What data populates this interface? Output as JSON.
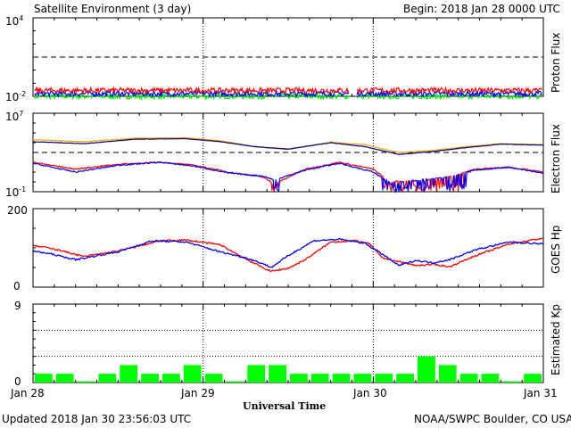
{
  "header": {
    "title": "Satellite Environment (3 day)",
    "begin": "Begin:  2018 Jan 28 0000 UTC"
  },
  "footer": {
    "updated": "Updated 2018 Jan 30 23:56:03 UTC",
    "credit": "NOAA/SWPC Boulder, CO USA"
  },
  "x_axis": {
    "label": "Universal Time",
    "ticks": [
      "Jan 28",
      "Jan 29",
      "Jan 30",
      "Jan 31"
    ]
  },
  "panels": {
    "proton": {
      "ylabel": "Proton Flux",
      "ytick_top_base": "10",
      "ytick_top_exp": "4",
      "ytick_bottom_base": "10",
      "ytick_bottom_exp": "-2"
    },
    "electron": {
      "ylabel": "Electron Flux",
      "ytick_top_base": "10",
      "ytick_top_exp": "7",
      "ytick_bottom_base": "10",
      "ytick_bottom_exp": "-1"
    },
    "goes": {
      "ylabel": "GOES Hp",
      "ytick_top": "200",
      "ytick_bottom": "0"
    },
    "kp": {
      "ylabel": "Estimated Kp",
      "ytick_top": "9",
      "ytick_bottom": "0"
    }
  },
  "colors": {
    "red": "#ff0000",
    "blue": "#0000ff",
    "green": "#00ee00",
    "orange": "#ffa500",
    "navy": "#000080",
    "kp_bar": "#00ff00",
    "frame": "#000000"
  },
  "chart_data": [
    {
      "type": "line",
      "title": "Proton Flux",
      "yscale": "log",
      "ylim": [
        0.01,
        10000
      ],
      "xlim_days": [
        0,
        3
      ],
      "threshold": 10,
      "series": [
        {
          "color": "red",
          "log10_level": -1.55
        },
        {
          "color": "blue",
          "log10_level": -1.8
        },
        {
          "color": "green",
          "log10_level": -2.0
        }
      ],
      "gap_days": [
        1.86,
        1.9
      ]
    },
    {
      "type": "line",
      "title": "Electron Flux",
      "yscale": "log",
      "ylim": [
        0.1,
        10000000
      ],
      "xlim_days": [
        0,
        3
      ],
      "threshold": 1000,
      "series": [
        {
          "color": "orange",
          "x": [
            0,
            0.3,
            0.6,
            0.9,
            1.1,
            1.3,
            1.5,
            1.75,
            1.95,
            2.15,
            2.35,
            2.55,
            2.75,
            3.0
          ],
          "log10": [
            4.3,
            4.1,
            4.45,
            4.5,
            4.2,
            3.6,
            3.3,
            4.05,
            3.8,
            3.0,
            3.2,
            3.6,
            3.9,
            3.8
          ]
        },
        {
          "color": "navy",
          "x": [
            0,
            0.3,
            0.6,
            0.9,
            1.1,
            1.3,
            1.5,
            1.75,
            1.95,
            2.15,
            2.35,
            2.55,
            2.75,
            3.0
          ],
          "log10": [
            4.1,
            3.9,
            4.35,
            4.4,
            4.1,
            3.6,
            3.35,
            4.0,
            3.6,
            2.8,
            3.1,
            3.5,
            3.85,
            3.75
          ]
        },
        {
          "color": "red",
          "x": [
            0,
            0.25,
            0.5,
            0.75,
            0.95,
            1.15,
            1.35,
            1.42,
            1.6,
            1.8,
            2.0,
            2.1,
            2.4,
            2.6,
            2.8,
            3.0
          ],
          "log10": [
            2.0,
            1.3,
            1.8,
            2.0,
            1.7,
            1.0,
            0.5,
            -0.2,
            1.3,
            2.0,
            1.3,
            0.0,
            0.3,
            1.3,
            1.5,
            1.0
          ]
        },
        {
          "color": "blue",
          "x": [
            0,
            0.25,
            0.5,
            0.75,
            0.95,
            1.15,
            1.35,
            1.42,
            1.6,
            1.8,
            2.0,
            2.1,
            2.4,
            2.6,
            2.8,
            3.0
          ],
          "log10": [
            1.9,
            1.0,
            1.7,
            2.0,
            1.6,
            0.9,
            0.6,
            0.2,
            1.2,
            1.9,
            1.0,
            -0.1,
            0.4,
            1.2,
            1.5,
            0.9
          ]
        }
      ]
    },
    {
      "type": "line",
      "title": "GOES Hp",
      "ylim": [
        0,
        200
      ],
      "xlim_days": [
        0,
        3
      ],
      "series": [
        {
          "color": "red",
          "x": [
            0,
            0.1,
            0.3,
            0.5,
            0.75,
            0.9,
            1.1,
            1.25,
            1.35,
            1.4,
            1.5,
            1.6,
            1.75,
            1.9,
            1.98,
            2.05,
            2.15,
            2.25,
            2.35,
            2.45,
            2.6,
            2.8,
            3.0
          ],
          "y": [
            105,
            100,
            78,
            92,
            118,
            120,
            108,
            72,
            50,
            40,
            48,
            70,
            115,
            118,
            110,
            75,
            65,
            55,
            58,
            52,
            80,
            110,
            125
          ]
        },
        {
          "color": "blue",
          "x": [
            0,
            0.1,
            0.25,
            0.5,
            0.7,
            0.9,
            1.1,
            1.25,
            1.35,
            1.4,
            1.5,
            1.65,
            1.8,
            1.95,
            2.05,
            2.15,
            2.25,
            2.35,
            2.45,
            2.6,
            2.8,
            3.0
          ],
          "y": [
            92,
            85,
            70,
            90,
            118,
            115,
            90,
            75,
            60,
            50,
            80,
            118,
            122,
            112,
            85,
            55,
            68,
            62,
            70,
            95,
            115,
            110
          ]
        }
      ]
    },
    {
      "type": "bar",
      "title": "Estimated Kp",
      "ylim": [
        0,
        9
      ],
      "bar_hours": 3,
      "values": [
        1,
        1,
        0,
        1,
        2,
        1,
        1,
        2,
        1,
        0,
        2,
        2,
        1,
        1,
        1,
        1,
        1,
        1,
        3,
        2,
        1,
        1,
        0,
        1
      ]
    }
  ]
}
